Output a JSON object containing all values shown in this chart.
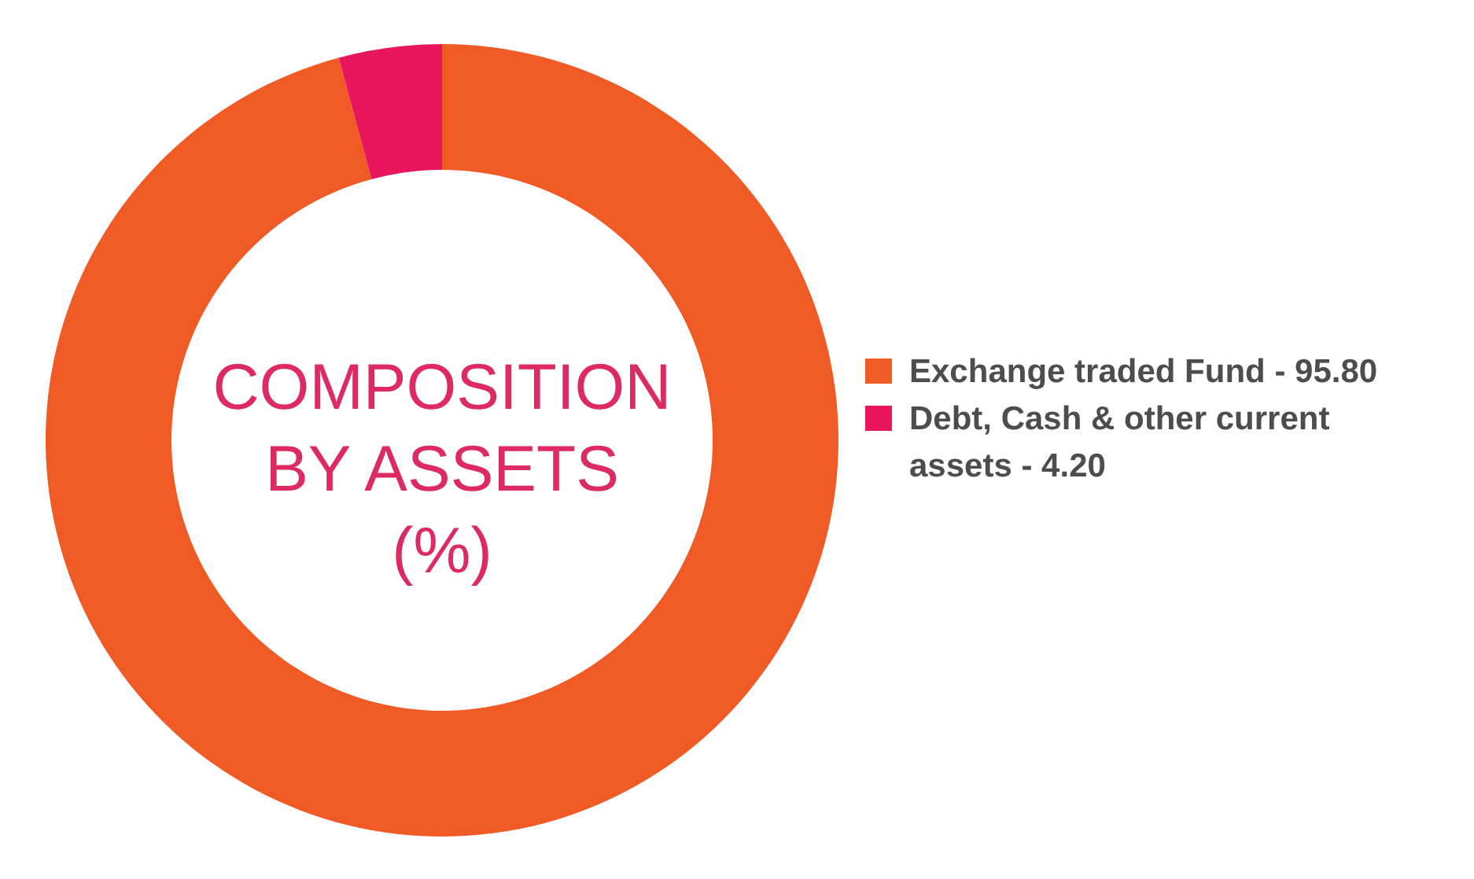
{
  "chart_data": {
    "type": "donut",
    "title": "COMPOSITION\nBY ASSETS\n(%)",
    "categories": [
      "Exchange traded Fund - 95.80",
      "Debt, Cash & other current assets - 4.20"
    ],
    "values": [
      95.8,
      4.2
    ],
    "colors": [
      "#f05a25",
      "#e8175d"
    ],
    "legend": "right"
  }
}
